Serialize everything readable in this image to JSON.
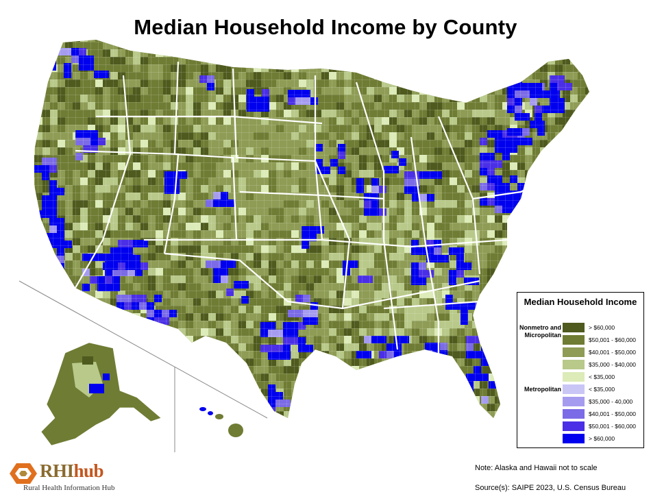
{
  "title": "Median Household Income by County",
  "legend": {
    "title": "Median Household Income",
    "groups": [
      {
        "name": "Nonmetro and Micropolitan",
        "items": [
          {
            "label": "> $60,000",
            "color": "#4e5a1e"
          },
          {
            "label": "$50,001 - $60,000",
            "color": "#6f7c34"
          },
          {
            "label": "$40,001 - $50,000",
            "color": "#8e9c55"
          },
          {
            "label": "$35,000 - $40,000",
            "color": "#b8c98a"
          },
          {
            "label": "< $35,000",
            "color": "#dcebb8"
          }
        ]
      },
      {
        "name": "Metropolitan",
        "items": [
          {
            "label": "< $35,000",
            "color": "#c9c6f6"
          },
          {
            "label": "$35,000 - 40,000",
            "color": "#a59cf0"
          },
          {
            "label": "$40,001 - $50,000",
            "color": "#7b6be6"
          },
          {
            "label": "$50,001 - $60,000",
            "color": "#4a2fe6"
          },
          {
            "label": "> $60,000",
            "color": "#0000ee"
          }
        ]
      }
    ]
  },
  "note": "Note: Alaska and Hawaii not to scale",
  "source": "Source(s): SAIPE 2023, U.S. Census Bureau",
  "logo": {
    "wordmark_rhi": "RHI",
    "wordmark_hub": "hub",
    "subtitle": "Rural Health Information Hub"
  }
}
